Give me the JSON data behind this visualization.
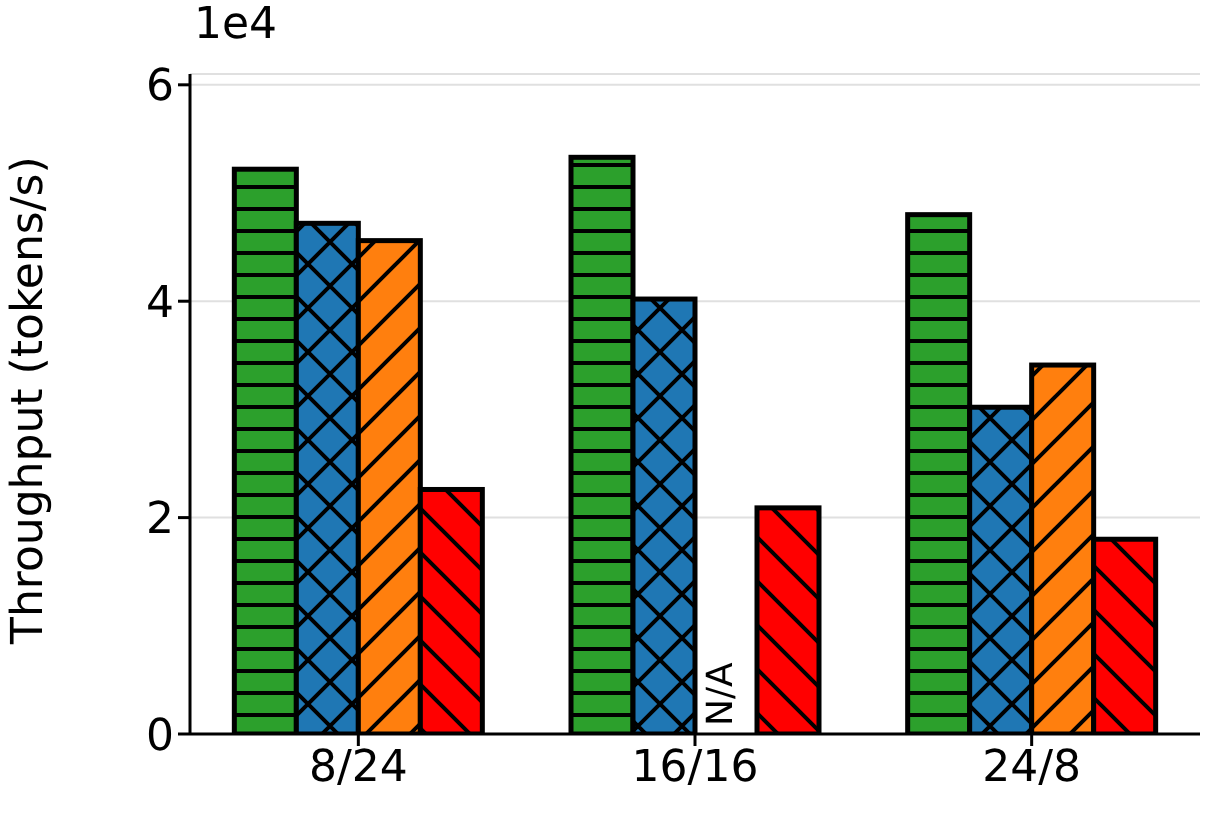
{
  "chart_data": {
    "type": "bar",
    "ylabel": "Throughput (tokens/s)",
    "categories": [
      "8/24",
      "16/16",
      "24/8"
    ],
    "series": [
      {
        "color": "#2ca02c",
        "values": [
          5.22,
          5.33,
          4.8
        ]
      },
      {
        "color": "#1f77b4",
        "values": [
          4.72,
          4.02,
          3.02
        ]
      },
      {
        "color": "#ff7f0e",
        "values": [
          4.56,
          null,
          3.41
        ]
      },
      {
        "color": "#ff0000",
        "values": [
          2.26,
          2.09,
          1.8
        ]
      }
    ],
    "ylim": [
      0,
      6.1
    ],
    "yticks": [
      0,
      2,
      4,
      6
    ],
    "grid": "y",
    "legend": false,
    "annotations": [
      "1e4",
      {
        "text": "N/A",
        "x": "16/16",
        "y": 0
      }
    ]
  }
}
